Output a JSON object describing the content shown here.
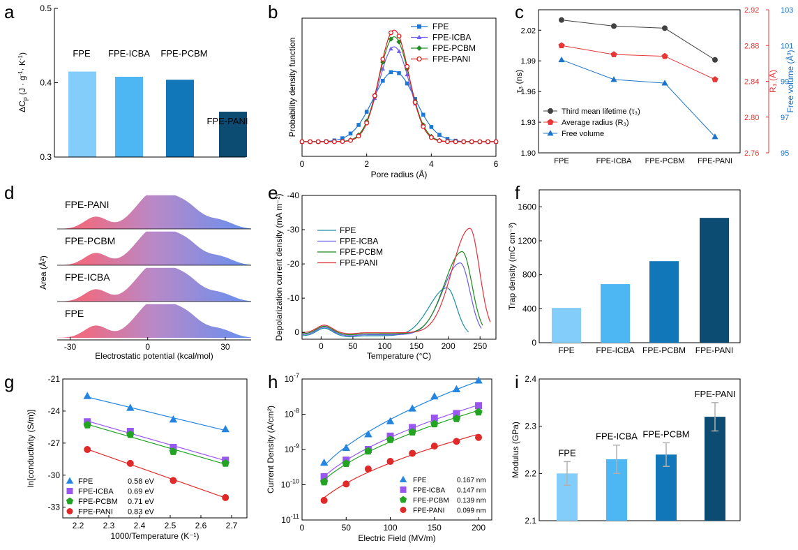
{
  "panel_letters": {
    "a": "a",
    "b": "b",
    "c": "c",
    "d": "d",
    "e": "e",
    "f": "f",
    "g": "g",
    "h": "h",
    "i": "i"
  },
  "colors": {
    "fpe": "#82cdfa",
    "icba": "#4cb7f2",
    "pcbm": "#1277b8",
    "pani": "#0d4c72",
    "b_fpe": "#1f77d4",
    "b_icba": "#7060ee",
    "b_pcbm": "#1e9120",
    "b_pani": "#e01c1c",
    "c_lifetime": "#404040",
    "c_radius": "#e83535",
    "c_free": "#1c74c8",
    "e_fpe": "#1a8fa0",
    "e_icba": "#6a5cf0",
    "e_pcbm": "#1a8a1a",
    "e_pani": "#e0303a",
    "ridge_left": "#ec6c84",
    "ridge_mid": "#b889c8",
    "ridge_right": "#6d8fec",
    "g_fpe": "#2385e0",
    "g_icba": "#9a56f0",
    "g_pcbm": "#22a422",
    "g_pani": "#e02a2a",
    "err": "#b0b0b0"
  },
  "chart_data": [
    {
      "id": "a",
      "type": "bar",
      "categories": [
        "FPE",
        "FPE-ICBA",
        "FPE-PCBM",
        "FPE-PANI"
      ],
      "values": [
        0.415,
        0.408,
        0.404,
        0.361
      ],
      "ylabel": "ΔC",
      "ylabel_sub": "p",
      "ylabel_units": "(J · g",
      "ylabel_exp1": "-1",
      "ylabel_mid": "· K",
      "ylabel_exp2": "-1",
      "ylabel_end": ")",
      "ylim": [
        0.3,
        0.5
      ],
      "yticks": [
        "0.3",
        "0.4",
        "0.5"
      ],
      "bar_labels": [
        "FPE",
        "FPE-ICBA",
        "FPE-PCBM",
        "FPE-PANI"
      ]
    },
    {
      "id": "b",
      "type": "line",
      "xlabel": "Pore radius (Å)",
      "ylabel": "Probability density function",
      "xlim": [
        0,
        6
      ],
      "xticks": [
        "0",
        "2",
        "4",
        "6"
      ],
      "legend": [
        "FPE",
        "FPE-ICBA",
        "FPE-PCBM",
        "FPE-PANI"
      ],
      "series": [
        {
          "name": "FPE",
          "peak": 2.85,
          "sigma": 0.65,
          "height": 0.63
        },
        {
          "name": "FPE-ICBA",
          "peak": 2.85,
          "sigma": 0.48,
          "height": 0.85
        },
        {
          "name": "FPE-PCBM",
          "peak": 2.85,
          "sigma": 0.47,
          "height": 0.94
        },
        {
          "name": "FPE-PANI",
          "peak": 2.85,
          "sigma": 0.45,
          "height": 1.0
        }
      ]
    },
    {
      "id": "c",
      "type": "line",
      "categories": [
        "FPE",
        "FPE-ICBA",
        "FPE-PCBM",
        "FPE-PANI"
      ],
      "ylabel_left": "τ₃ (ns)",
      "ylabel_right1": "R₃ (Å)",
      "ylabel_right2": "Free volume (Å³)",
      "left_ticks": [
        "1.90",
        "1.93",
        "1.96",
        "1.99",
        "2.02"
      ],
      "right1_ticks": [
        "2.76",
        "2.80",
        "2.84",
        "2.88",
        "2.92"
      ],
      "right2_ticks": [
        "95",
        "97",
        "99",
        "101",
        "103"
      ],
      "left_range": [
        1.9,
        2.04
      ],
      "right1_range": [
        2.76,
        2.92
      ],
      "right2_range": [
        95,
        103
      ],
      "series": [
        {
          "name": "Third mean lifetime (τ₃)",
          "axis": "left",
          "values": [
            2.03,
            2.024,
            2.022,
            1.991
          ]
        },
        {
          "name": "Average radius (R₃)",
          "axis": "right1",
          "values": [
            2.88,
            2.87,
            2.868,
            2.842
          ]
        },
        {
          "name": "Free volume",
          "axis": "right2",
          "values": [
            100.2,
            99.1,
            98.9,
            95.9
          ]
        }
      ]
    },
    {
      "id": "d",
      "type": "area",
      "xlabel": "Electrostatic potential (kcal/mol)",
      "ylabel": "Area (Å²)",
      "xlim": [
        -35,
        40
      ],
      "xticks": [
        "-30",
        "0",
        "30"
      ],
      "rows": [
        "FPE-PANI",
        "FPE-PCBM",
        "FPE-ICBA",
        "FPE"
      ]
    },
    {
      "id": "e",
      "type": "line",
      "xlabel": "Temperature (°C)",
      "ylabel": "Depolarization current density (mA m⁻²)",
      "xlim": [
        -30,
        275
      ],
      "xticks": [
        "0",
        "50",
        "100",
        "150",
        "200",
        "250"
      ],
      "ylim": [
        -40,
        2
      ],
      "yticks": [
        "-40",
        "-30",
        "-20",
        "-10",
        "0"
      ],
      "legend": [
        "FPE",
        "FPE-ICBA",
        "FPE-PCBM",
        "FPE-PANI"
      ],
      "series": [
        {
          "name": "FPE",
          "peak_T": 198,
          "peak_val": -14,
          "end_T": 232
        },
        {
          "name": "FPE-ICBA",
          "peak_T": 219,
          "peak_val": -21,
          "end_T": 252
        },
        {
          "name": "FPE-PCBM",
          "peak_T": 222,
          "peak_val": -24,
          "end_T": 255
        },
        {
          "name": "FPE-PANI",
          "peak_T": 234,
          "peak_val": -30.5,
          "end_T": 266
        }
      ]
    },
    {
      "id": "f",
      "type": "bar",
      "categories": [
        "FPE",
        "FPE-ICBA",
        "FPE-PCBM",
        "FPE-PANI"
      ],
      "values": [
        410,
        690,
        960,
        1470
      ],
      "ylabel": "Trap density (mC cm⁻³)",
      "ylim": [
        0,
        1800
      ],
      "yticks": [
        "0",
        "400",
        "800",
        "1200",
        "1600"
      ]
    },
    {
      "id": "g",
      "type": "scatter",
      "xlabel": "1000/Temperature (K⁻¹)",
      "ylabel": "ln[conductivity (S/m)]",
      "xlim": [
        2.15,
        2.75
      ],
      "ylim": [
        -34,
        -21
      ],
      "xticks": [
        "2.2",
        "2.3",
        "2.4",
        "2.5",
        "2.6",
        "2.7"
      ],
      "yticks": [
        "-33",
        "-30",
        "-27",
        "-24",
        "-21"
      ],
      "x": [
        2.23,
        2.37,
        2.51,
        2.68
      ],
      "series": [
        {
          "name": "FPE",
          "energy": "0.58 eV",
          "values": [
            -22.6,
            -23.7,
            -24.8,
            -25.7
          ]
        },
        {
          "name": "FPE-ICBA",
          "energy": "0.69 eV",
          "values": [
            -25.0,
            -25.9,
            -27.4,
            -28.6
          ]
        },
        {
          "name": "FPE-PCBM",
          "energy": "0.71 eV",
          "values": [
            -25.3,
            -26.2,
            -27.8,
            -28.9
          ]
        },
        {
          "name": "FPE-PANI",
          "energy": "0.83 eV",
          "values": [
            -27.6,
            -28.9,
            -30.5,
            -32.1
          ]
        }
      ]
    },
    {
      "id": "h",
      "type": "scatter",
      "xlabel": "Electric  Field (MV/m)",
      "ylabel": "Current Density (A/cm²)",
      "xlim": [
        0,
        215
      ],
      "ylim_log": [
        -11,
        -7
      ],
      "xticks": [
        "0",
        "50",
        "100",
        "150",
        "200"
      ],
      "x": [
        25,
        50,
        75,
        100,
        125,
        150,
        175,
        200
      ],
      "series": [
        {
          "name": "FPE",
          "trap": "0.167 nm",
          "values": [
            4.2e-10,
            1.1e-09,
            2.7e-09,
            6.3e-09,
            1.45e-08,
            3.2e-08,
            5.1e-08,
            9e-08
          ]
        },
        {
          "name": "FPE-ICBA",
          "trap": "0.147 nm",
          "values": [
            1.7e-10,
            5e-10,
            1e-09,
            2.4e-09,
            4.2e-09,
            7.8e-09,
            1.05e-08,
            1.75e-08
          ]
        },
        {
          "name": "FPE-PCBM",
          "trap": "0.139 nm",
          "values": [
            1.2e-10,
            4e-10,
            9e-10,
            1.9e-09,
            3.1e-09,
            5.3e-09,
            7.5e-09,
            1.15e-08
          ]
        },
        {
          "name": "FPE-PANI",
          "trap": "0.099 nm",
          "values": [
            3.6e-11,
            1.05e-10,
            2.8e-10,
            4.6e-10,
            7.8e-10,
            1.25e-09,
            1.7e-09,
            2.2e-09
          ]
        }
      ]
    },
    {
      "id": "i",
      "type": "bar",
      "categories": [
        "FPE",
        "FPE-ICBA",
        "FPE-PCBM",
        "FPE-PANI"
      ],
      "values": [
        2.2,
        2.23,
        2.24,
        2.32
      ],
      "errors": [
        0.025,
        0.03,
        0.025,
        0.03
      ],
      "ylabel": "Modulus  (GPa)",
      "ylim": [
        2.1,
        2.4
      ],
      "yticks": [
        "2.1",
        "2.2",
        "2.3",
        "2.4"
      ]
    }
  ]
}
